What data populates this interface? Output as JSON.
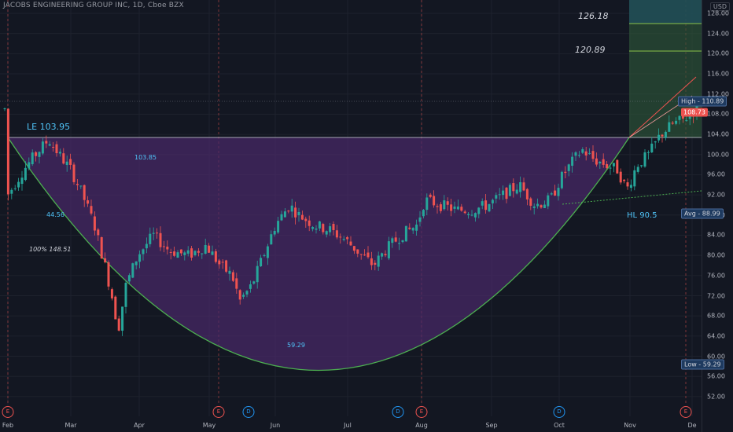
{
  "header": {
    "title": "JACOBS ENGINEERING GROUP INC, 1D, Cboe BZX",
    "currency": "USD"
  },
  "price_axis": {
    "ticks": [
      "128.00",
      "124.00",
      "120.00",
      "116.00",
      "112.00",
      "108.00",
      "104.00",
      "100.00",
      "96.00",
      "92.00",
      "88.00",
      "84.00",
      "80.00",
      "76.00",
      "72.00",
      "68.00",
      "64.00",
      "60.00",
      "56.00",
      "52.00"
    ],
    "values": [
      128,
      124,
      120,
      116,
      112,
      108,
      104,
      100,
      96,
      92,
      88,
      84,
      80,
      76,
      72,
      68,
      64,
      60,
      56,
      52
    ]
  },
  "tags": {
    "high": "High - 110.89",
    "price": "108.73",
    "avg": "Avg - 88.99",
    "low": "Low - 59.29"
  },
  "annotations": {
    "target1": "126.18",
    "target2": "120.89",
    "le": "LE 103.95",
    "hl": "HL 90.5",
    "fib_100": "100% 148.51",
    "label_a": "103.85",
    "label_b": "44.56",
    "label_c": "59.29"
  },
  "time_axis": {
    "months": [
      "Feb",
      "Mar",
      "Apr",
      "May",
      "Jun",
      "Jul",
      "Aug",
      "Sep",
      "Oct",
      "Nov",
      "De"
    ]
  },
  "events": {
    "earnings": "E",
    "dividend": "D"
  },
  "colors": {
    "background": "#131722",
    "up": "#26a69a",
    "down": "#ef5350",
    "cup_fill": "#4a2a6a",
    "cup_line": "#4caf50",
    "target_zone": "#2e5a3a",
    "hl_line": "#4caf50",
    "accent": "#4fc3f7"
  },
  "chart_data": {
    "type": "candlestick",
    "symbol": "JACOBS ENGINEERING GROUP INC",
    "interval": "1D",
    "exchange": "Cboe BZX",
    "y_range": [
      50,
      130
    ],
    "last_price": 108.73,
    "high": 110.89,
    "low": 59.29,
    "avg": 88.99,
    "levels": [
      126.18,
      120.89,
      103.95,
      90.5
    ]
  }
}
